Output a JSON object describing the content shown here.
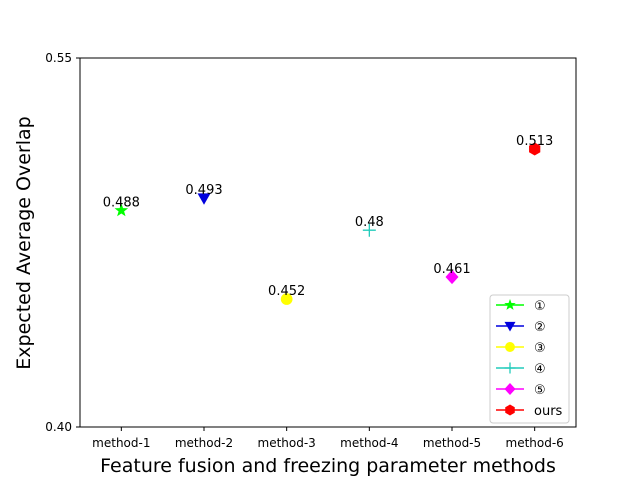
{
  "chart_data": {
    "type": "scatter",
    "xlabel": "Feature fusion and freezing parameter methods",
    "ylabel": "Expected Average Overlap",
    "ylim": [
      0.4,
      0.55
    ],
    "yticks": [
      "0.40",
      "0.55"
    ],
    "categories": [
      "method-1",
      "method-2",
      "method-3",
      "method-4",
      "method-5",
      "method-6"
    ],
    "grid": false,
    "legend_position": "bottom-right",
    "series": [
      {
        "name": "①",
        "category": "method-1",
        "value": 0.488,
        "label": "0.488",
        "color": "#00ff00",
        "marker": "star"
      },
      {
        "name": "②",
        "category": "method-2",
        "value": 0.493,
        "label": "0.493",
        "color": "#0000dd",
        "marker": "triangle-down"
      },
      {
        "name": "③",
        "category": "method-3",
        "value": 0.452,
        "label": "0.452",
        "color": "#ffff00",
        "marker": "circle"
      },
      {
        "name": "④",
        "category": "method-4",
        "value": 0.48,
        "label": "0.48",
        "color": "#22ccbb",
        "marker": "plus"
      },
      {
        "name": "⑤",
        "category": "method-5",
        "value": 0.461,
        "label": "0.461",
        "color": "#ff00ff",
        "marker": "diamond"
      },
      {
        "name": "ours",
        "category": "method-6",
        "value": 0.513,
        "label": "0.513",
        "color": "#ff0000",
        "marker": "hexagon"
      }
    ]
  }
}
